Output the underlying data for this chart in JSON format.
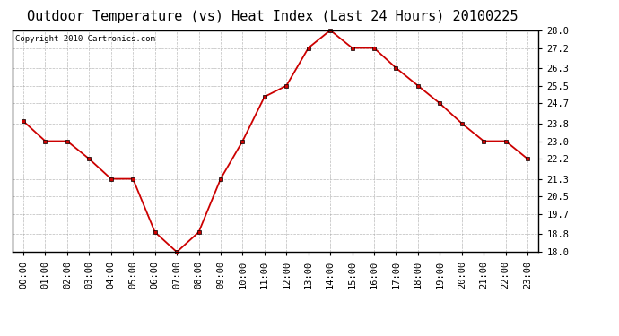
{
  "title": "Outdoor Temperature (vs) Heat Index (Last 24 Hours) 20100225",
  "copyright": "Copyright 2010 Cartronics.com",
  "x_labels": [
    "00:00",
    "01:00",
    "02:00",
    "03:00",
    "04:00",
    "05:00",
    "06:00",
    "07:00",
    "08:00",
    "09:00",
    "10:00",
    "11:00",
    "12:00",
    "13:00",
    "14:00",
    "15:00",
    "16:00",
    "17:00",
    "18:00",
    "19:00",
    "20:00",
    "21:00",
    "22:00",
    "23:00"
  ],
  "y_values": [
    23.9,
    23.0,
    23.0,
    22.2,
    21.3,
    21.3,
    18.9,
    18.0,
    18.9,
    21.3,
    23.0,
    25.0,
    25.5,
    27.2,
    28.0,
    27.2,
    27.2,
    26.3,
    25.5,
    24.7,
    23.8,
    23.0,
    23.0,
    22.2
  ],
  "line_color": "#cc0000",
  "marker": "s",
  "marker_size": 3,
  "background_color": "#ffffff",
  "plot_bg_color": "#ffffff",
  "grid_color": "#aaaaaa",
  "y_min": 18.0,
  "y_max": 28.0,
  "y_ticks": [
    18.0,
    18.8,
    19.7,
    20.5,
    21.3,
    22.2,
    23.0,
    23.8,
    24.7,
    25.5,
    26.3,
    27.2,
    28.0
  ],
  "title_fontsize": 11,
  "tick_fontsize": 7.5,
  "copyright_fontsize": 6.5
}
